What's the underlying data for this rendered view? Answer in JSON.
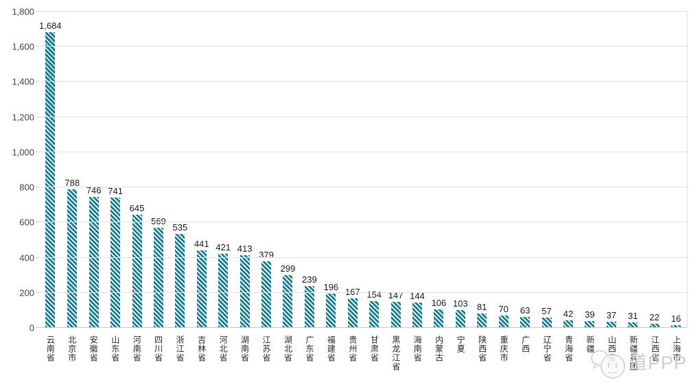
{
  "chart_data": {
    "type": "bar",
    "title": "",
    "xlabel": "",
    "ylabel": "",
    "categories": [
      "云南省",
      "北京市",
      "安徽省",
      "山东省",
      "河南省",
      "四川省",
      "浙江省",
      "吉林省",
      "河北省",
      "湖南省",
      "江苏省",
      "湖北省",
      "广东省",
      "福建省",
      "贵州省",
      "甘肃省",
      "黑龙江省",
      "海南省",
      "内蒙古",
      "宁夏",
      "陕西省",
      "重庆市",
      "广西",
      "辽宁省",
      "青海省",
      "新疆",
      "山西省",
      "新疆兵团",
      "江西省",
      "上海市"
    ],
    "values": [
      1684,
      788,
      746,
      741,
      645,
      569,
      535,
      441,
      421,
      413,
      379,
      299,
      239,
      196,
      167,
      154,
      147,
      144,
      106,
      103,
      81,
      70,
      63,
      57,
      42,
      39,
      37,
      31,
      22,
      16
    ],
    "value_labels": [
      "1,684",
      "788",
      "746",
      "741",
      "645",
      "569",
      "535",
      "441",
      "421",
      "413",
      "379",
      "299",
      "239",
      "196",
      "167",
      "154",
      "147",
      "144",
      "106",
      "103",
      "81",
      "70",
      "63",
      "57",
      "42",
      "39",
      "37",
      "31",
      "22",
      "16"
    ],
    "ylim": [
      0,
      1800
    ],
    "ytick_step": 200,
    "ytick_labels": [
      "0",
      "200",
      "400",
      "600",
      "800",
      "1,000",
      "1,200",
      "1,400",
      "1,600",
      "1,800"
    ],
    "grid": true,
    "legend": "none",
    "bar_color": "#1f7f93",
    "bar_pattern": "diagonal-stripes"
  },
  "watermark": {
    "text": "道PPP",
    "icon": "chat-bubble-face-icon"
  }
}
